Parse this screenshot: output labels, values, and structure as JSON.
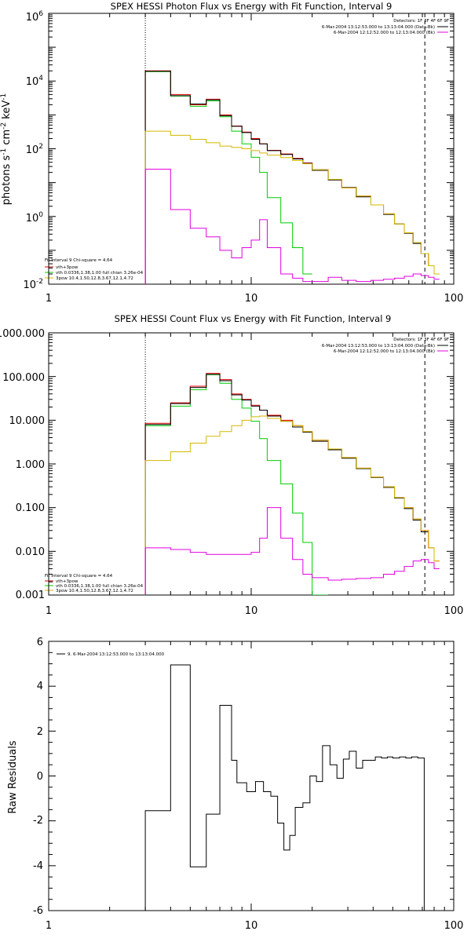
{
  "colors": {
    "data": "#000000",
    "total": "#e00000",
    "thermal": "#00cc00",
    "power_law": "#d4b800",
    "background": "#e000e0"
  },
  "chart_data": [
    {
      "type": "line",
      "title": "SPEX HESSI Photon Flux vs Energy with Fit Function, Interval 9",
      "ylabel": "photons s",
      "ylabel_parts": {
        "a": "photons s",
        "e1": "-1",
        "b": " cm",
        "e2": "-2",
        "c": " keV",
        "e3": "-1"
      },
      "xscale": "log",
      "yscale": "log",
      "xlim": [
        1,
        100
      ],
      "ylim": [
        0.01,
        1000000
      ],
      "xticks": [
        "1",
        "10",
        "100"
      ],
      "yticks": [
        {
          "value": 0.01,
          "mantissa": "10",
          "exp": "-2"
        },
        {
          "value": 1,
          "mantissa": "10",
          "exp": "0"
        },
        {
          "value": 100,
          "mantissa": "10",
          "exp": "2"
        },
        {
          "value": 10000,
          "mantissa": "10",
          "exp": "4"
        },
        {
          "value": 1000000,
          "mantissa": "10",
          "exp": "6"
        }
      ],
      "vlines": {
        "dotted": 3.0,
        "dashed": 72.0
      },
      "legend_top": {
        "header": "Detectors: 1F 3F 4F 6F 9F",
        "lines": [
          {
            "text": "6-Mar-2004 13:12:53.000 to 13:13:04.000 (Data-Bk)",
            "color": "#000000"
          },
          {
            "text": "6-Mar-2004 12:12:52.000 to 12:13:04.000 (Bk)",
            "color": "#e000e0"
          }
        ]
      },
      "legend_bottom": {
        "header": "Fit Interval  9    Chi-square = 4.64",
        "lines": [
          {
            "text": "vth+3pow",
            "color": "#e00000"
          },
          {
            "text": "vth 0.0336,1.38,1.00  full chian 3.26e-04",
            "color": "#00cc00"
          },
          {
            "text": "3pow 10.4,1.50,12.8,3.67,12.1,4.72",
            "color": "#d4b800"
          }
        ]
      },
      "bin_edges": [
        3.0,
        3.5,
        4.0,
        4.5,
        5.0,
        5.5,
        6.0,
        6.5,
        7.0,
        7.5,
        8.0,
        8.5,
        9.0,
        9.5,
        10.0,
        10.5,
        11.0,
        11.5,
        12.0,
        13.0,
        14.0,
        15.0,
        16.0,
        17.0,
        18.0,
        19.0,
        20.0,
        22.0,
        24.0,
        26.0,
        28.0,
        30.0,
        33.0,
        36.0,
        39.0,
        42.0,
        45.0,
        48.0,
        51.0,
        54.0,
        57.0,
        60.0,
        63.0,
        66.0,
        69.0,
        72.0,
        75.0,
        80.0,
        85.0
      ],
      "series": [
        {
          "key": "thermal",
          "values": [
            19000,
            19000,
            3600,
            3600,
            1800,
            1800,
            2600,
            2600,
            880,
            880,
            330,
            330,
            140,
            140,
            56,
            56,
            20,
            20,
            3.6,
            3.6,
            0.65,
            0.65,
            0.12,
            0.12,
            0.02,
            0.02,
            null,
            null,
            null,
            null,
            null,
            null,
            null,
            null,
            null,
            null,
            null,
            null,
            null,
            null,
            null,
            null,
            null,
            null,
            null,
            null,
            null,
            null
          ]
        },
        {
          "key": "total",
          "values": [
            20000,
            20000,
            4000,
            4000,
            2000,
            2000,
            2900,
            2900,
            1000,
            1000,
            470,
            470,
            310,
            310,
            200,
            200,
            140,
            140,
            90,
            90,
            70,
            70,
            52,
            52,
            38,
            38,
            24,
            24,
            12.5,
            12.5,
            7,
            7,
            4,
            4,
            2.2,
            2.2,
            1.2,
            1.2,
            0.6,
            0.6,
            0.33,
            0.33,
            0.17,
            0.17,
            0.08,
            0.08,
            0.035,
            0.02
          ]
        },
        {
          "key": "data",
          "values": [
            19500,
            19500,
            3700,
            3700,
            2100,
            2100,
            2800,
            2800,
            950,
            950,
            460,
            460,
            300,
            300,
            190,
            190,
            140,
            140,
            88,
            88,
            68,
            68,
            50,
            50,
            37,
            37,
            23,
            23,
            12,
            12,
            7.2,
            7.2,
            3.8,
            3.8,
            2.2,
            2.2,
            1.15,
            1.15,
            0.6,
            0.6,
            0.32,
            0.32,
            0.16,
            0.16,
            0.08,
            0.08,
            null,
            null
          ]
        },
        {
          "key": "power_law",
          "values": [
            330,
            330,
            250,
            250,
            190,
            190,
            150,
            150,
            120,
            120,
            110,
            110,
            100,
            100,
            88,
            88,
            75,
            75,
            65,
            65,
            55,
            55,
            45,
            45,
            36,
            36,
            24,
            24,
            12.5,
            12.5,
            7,
            7,
            4,
            4,
            2.2,
            2.2,
            1.2,
            1.2,
            0.6,
            0.6,
            0.33,
            0.33,
            0.17,
            0.17,
            0.08,
            0.08,
            0.035,
            0.02
          ]
        },
        {
          "key": "background",
          "values": [
            25,
            25,
            1.6,
            1.6,
            0.45,
            0.45,
            0.25,
            0.25,
            0.1,
            0.1,
            0.06,
            0.06,
            0.12,
            0.12,
            0.2,
            0.2,
            0.8,
            0.8,
            0.12,
            0.12,
            0.02,
            0.02,
            0.015,
            0.015,
            0.012,
            0.012,
            0.012,
            0.012,
            0.016,
            0.016,
            0.013,
            0.013,
            0.012,
            0.012,
            0.013,
            0.013,
            0.014,
            0.014,
            0.015,
            0.015,
            0.017,
            0.017,
            0.02,
            0.02,
            0.018,
            0.018,
            0.016,
            0.014
          ]
        }
      ]
    },
    {
      "type": "line",
      "title": "SPEX HESSI Count Flux vs Energy with Fit Function, Interval 9",
      "xscale": "log",
      "yscale": "log",
      "xlim": [
        1,
        100
      ],
      "ylim": [
        0.001,
        1000
      ],
      "xticks": [
        "1",
        "10",
        "100"
      ],
      "yticks": [
        {
          "value": 0.001,
          "label": "0.001"
        },
        {
          "value": 0.01,
          "label": "0.010"
        },
        {
          "value": 0.1,
          "label": "0.100"
        },
        {
          "value": 1,
          "label": "1.000"
        },
        {
          "value": 10,
          "label": "10.000"
        },
        {
          "value": 100,
          "label": "100.000"
        },
        {
          "value": 1000,
          "label": "1000.000"
        }
      ],
      "vlines": {
        "dotted": 3.0,
        "dashed": 72.0
      },
      "legend_top": {
        "header": "Detectors: 1F 3F 4F 6F 9F",
        "lines": [
          {
            "text": "6-Mar-2004 13:12:53.000 to 13:13:04.000 (Data-Bk)",
            "color": "#000000"
          },
          {
            "text": "6-Mar-2004 12:12:52.000 to 12:13:04.000 (Bk)",
            "color": "#e000e0"
          }
        ]
      },
      "legend_bottom": {
        "header": "Fit Interval  9    Chi-square = 4.64",
        "lines": [
          {
            "text": "vth+3pow",
            "color": "#e00000"
          },
          {
            "text": "vth 0.0336,1.38,1.00  full chian 3.26e-04",
            "color": "#00cc00"
          },
          {
            "text": "3pow 10.4,1.50,12.8,3.67,12.1,4.72",
            "color": "#d4b800"
          }
        ]
      },
      "bin_edges": [
        3.0,
        3.5,
        4.0,
        4.5,
        5.0,
        5.5,
        6.0,
        6.5,
        7.0,
        7.5,
        8.0,
        8.5,
        9.0,
        9.5,
        10.0,
        10.5,
        11.0,
        11.5,
        12.0,
        13.0,
        14.0,
        15.0,
        16.0,
        17.0,
        18.0,
        19.0,
        20.0,
        22.0,
        24.0,
        26.0,
        28.0,
        30.0,
        33.0,
        36.0,
        39.0,
        42.0,
        45.0,
        48.0,
        51.0,
        54.0,
        57.0,
        60.0,
        63.0,
        66.0,
        69.0,
        72.0,
        75.0,
        80.0,
        85.0
      ],
      "series": [
        {
          "key": "thermal",
          "values": [
            7.5,
            7.5,
            21,
            21,
            50,
            50,
            110,
            110,
            70,
            70,
            30,
            30,
            19,
            19,
            9.5,
            9.5,
            3.8,
            3.8,
            1.2,
            1.2,
            0.35,
            0.35,
            0.075,
            0.075,
            0.016,
            0.016,
            0.001,
            0.001,
            null,
            null,
            null,
            null,
            null,
            null,
            null,
            null,
            null,
            null,
            null,
            null,
            null,
            null,
            null,
            null,
            null,
            null,
            null,
            null
          ]
        },
        {
          "key": "total",
          "values": [
            8.5,
            8.5,
            25,
            25,
            60,
            60,
            118,
            118,
            85,
            85,
            40,
            40,
            30,
            30,
            22,
            22,
            17,
            17,
            13,
            13,
            10,
            10,
            7.5,
            7.5,
            5.5,
            5.5,
            3.5,
            3.5,
            2.2,
            2.2,
            1.4,
            1.4,
            0.8,
            0.8,
            0.5,
            0.5,
            0.3,
            0.3,
            0.17,
            0.17,
            0.1,
            0.1,
            0.055,
            0.055,
            0.03,
            0.03,
            0.012,
            0.006
          ]
        },
        {
          "key": "data",
          "values": [
            8.0,
            8.0,
            24,
            24,
            56,
            56,
            112,
            112,
            80,
            80,
            38,
            38,
            29,
            29,
            21,
            21,
            17,
            17,
            12.5,
            12.5,
            9.5,
            9.5,
            7,
            7,
            5.3,
            5.3,
            3.3,
            3.3,
            2.1,
            2.1,
            1.35,
            1.35,
            0.78,
            0.78,
            0.49,
            0.49,
            0.29,
            0.29,
            0.165,
            0.165,
            0.095,
            0.095,
            0.052,
            0.052,
            0.028,
            0.028,
            null,
            null
          ]
        },
        {
          "key": "power_law",
          "values": [
            1.2,
            1.2,
            1.9,
            1.9,
            3.0,
            3.0,
            4.3,
            4.3,
            5.5,
            5.5,
            7.5,
            7.5,
            10,
            10,
            12,
            12,
            12.5,
            12.5,
            11,
            11,
            9.5,
            9.5,
            7.5,
            7.5,
            5.5,
            5.5,
            3.5,
            3.5,
            2.2,
            2.2,
            1.4,
            1.4,
            0.8,
            0.8,
            0.5,
            0.5,
            0.3,
            0.3,
            0.17,
            0.17,
            0.1,
            0.1,
            0.055,
            0.055,
            0.03,
            0.03,
            0.012,
            0.006
          ]
        },
        {
          "key": "background",
          "values": [
            0.012,
            0.012,
            0.011,
            0.011,
            0.0095,
            0.0095,
            0.0085,
            0.0085,
            0.0085,
            0.0085,
            0.0085,
            0.0085,
            0.0085,
            0.0085,
            0.0095,
            0.0095,
            0.02,
            0.02,
            0.1,
            0.1,
            0.02,
            0.02,
            0.0065,
            0.0065,
            0.003,
            0.003,
            0.0025,
            0.0025,
            0.0022,
            0.0022,
            0.0023,
            0.0023,
            0.0024,
            0.0024,
            0.0025,
            0.0025,
            0.003,
            0.003,
            0.0035,
            0.0035,
            0.0045,
            0.0045,
            0.006,
            0.006,
            0.0065,
            0.0065,
            0.0055,
            0.004
          ]
        }
      ]
    },
    {
      "type": "line",
      "title": "",
      "ylabel": "Raw Residuals",
      "xscale": "log",
      "yscale": "linear",
      "xlim": [
        1,
        100
      ],
      "ylim": [
        -6,
        6
      ],
      "xticks": [
        "1",
        "10",
        "100"
      ],
      "yticks": [
        {
          "value": -6,
          "label": "-6"
        },
        {
          "value": -4,
          "label": "-4"
        },
        {
          "value": -2,
          "label": "-2"
        },
        {
          "value": 0,
          "label": "0"
        },
        {
          "value": 2,
          "label": "2"
        },
        {
          "value": 4,
          "label": "4"
        },
        {
          "value": 6,
          "label": "6"
        }
      ],
      "legend": {
        "text": "9.  6-Mar-2004 13:12:53.000 to 13:13:04.000"
      },
      "bin_edges": [
        3.0,
        4.0,
        5.0,
        6.0,
        7.0,
        8.0,
        8.5,
        9.5,
        10.5,
        11.5,
        12.5,
        13.5,
        14.5,
        15.5,
        16.5,
        18.0,
        19.5,
        21.0,
        22.5,
        24.5,
        26.5,
        28.5,
        30.5,
        33.0,
        35.5,
        38.0,
        41.0,
        44.0,
        47.0,
        50.0,
        54.0,
        58.0,
        62.0,
        66.5,
        71.5
      ],
      "residuals": [
        -1.55,
        4.95,
        -4.05,
        -1.7,
        3.15,
        0.7,
        -0.3,
        -0.7,
        -0.25,
        -0.7,
        -0.9,
        -2.1,
        -3.3,
        -2.65,
        -1.4,
        -1.2,
        0.0,
        -0.25,
        1.35,
        0.5,
        -0.1,
        0.75,
        1.1,
        0.35,
        0.7,
        0.7,
        0.85,
        0.8,
        0.85,
        0.8,
        0.85,
        0.8,
        0.85,
        0.8
      ]
    }
  ]
}
